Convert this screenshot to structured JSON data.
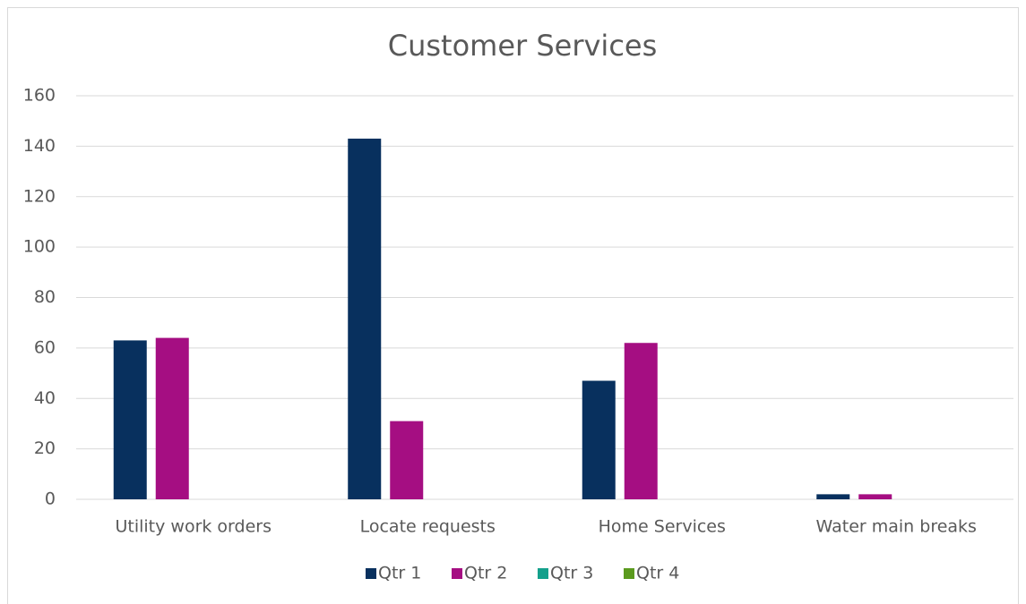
{
  "chart_data": {
    "type": "bar",
    "title": "Customer Services",
    "categories": [
      "Utility work orders",
      "Locate requests",
      "Home Services",
      "Water main breaks"
    ],
    "series": [
      {
        "name": "Qtr 1",
        "color": "#08305e",
        "values": [
          63,
          143,
          47,
          2
        ]
      },
      {
        "name": "Qtr 2",
        "color": "#a50e82",
        "values": [
          64,
          31,
          62,
          2
        ]
      },
      {
        "name": "Qtr 3",
        "color": "#14a08c",
        "values": [
          0,
          0,
          0,
          0
        ]
      },
      {
        "name": "Qtr 4",
        "color": "#5b9a1e",
        "values": [
          0,
          0,
          0,
          0
        ]
      }
    ],
    "ylim": [
      0,
      160
    ],
    "yticks": [
      0,
      20,
      40,
      60,
      80,
      100,
      120,
      140,
      160
    ],
    "grid": true,
    "legend": "bottom"
  }
}
